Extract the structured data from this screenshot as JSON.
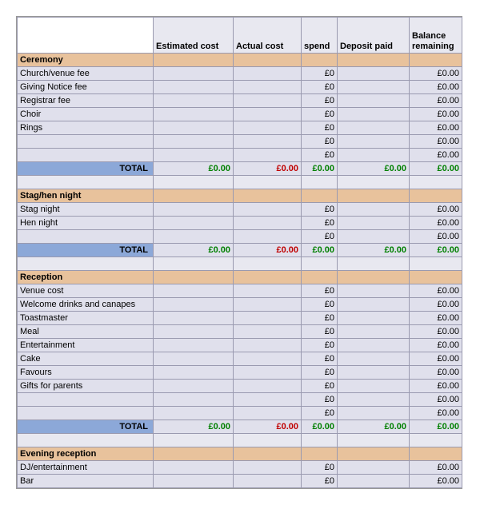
{
  "headers": {
    "col1": "",
    "col2": "Estimated cost",
    "col3": "Actual cost",
    "col4": "spend",
    "col5": "Deposit paid",
    "col6": "Balance remaining"
  },
  "colors": {
    "section_bg": "#e8c29c",
    "item_bg": "#e0e0ec",
    "total_label_bg": "#8ca8d8",
    "green": "#008000",
    "red": "#c00000",
    "grid": "#9a9ab0"
  },
  "sections": [
    {
      "title": "Ceremony",
      "items": [
        {
          "name": "Church/venue fee",
          "spend": "£0",
          "balance": "£0.00"
        },
        {
          "name": "Giving Notice fee",
          "spend": "£0",
          "balance": "£0.00"
        },
        {
          "name": "Registrar fee",
          "spend": "£0",
          "balance": "£0.00"
        },
        {
          "name": "Choir",
          "spend": "£0",
          "balance": "£0.00"
        },
        {
          "name": "Rings",
          "spend": "£0",
          "balance": "£0.00"
        },
        {
          "name": "",
          "spend": "£0",
          "balance": "£0.00"
        },
        {
          "name": "",
          "spend": "£0",
          "balance": "£0.00"
        }
      ],
      "total": {
        "label": "TOTAL",
        "est": "£0.00",
        "act": "£0.00",
        "spend": "£0.00",
        "dep": "£0.00",
        "bal": "£0.00"
      }
    },
    {
      "title": "Stag/hen night",
      "items": [
        {
          "name": "Stag night",
          "spend": "£0",
          "balance": "£0.00"
        },
        {
          "name": "Hen night",
          "spend": "£0",
          "balance": "£0.00"
        },
        {
          "name": "",
          "spend": "£0",
          "balance": "£0.00"
        }
      ],
      "total": {
        "label": "TOTAL",
        "est": "£0.00",
        "act": "£0.00",
        "spend": "£0.00",
        "dep": "£0.00",
        "bal": "£0.00"
      }
    },
    {
      "title": "Reception",
      "items": [
        {
          "name": "Venue cost",
          "spend": "£0",
          "balance": "£0.00"
        },
        {
          "name": "Welcome drinks and canapes",
          "spend": "£0",
          "balance": "£0.00"
        },
        {
          "name": "Toastmaster",
          "spend": "£0",
          "balance": "£0.00"
        },
        {
          "name": "Meal",
          "spend": "£0",
          "balance": "£0.00"
        },
        {
          "name": "Entertainment",
          "spend": "£0",
          "balance": "£0.00"
        },
        {
          "name": "Cake",
          "spend": "£0",
          "balance": "£0.00"
        },
        {
          "name": "Favours",
          "spend": "£0",
          "balance": "£0.00"
        },
        {
          "name": "Gifts for parents",
          "spend": "£0",
          "balance": "£0.00"
        },
        {
          "name": "",
          "spend": "£0",
          "balance": "£0.00"
        },
        {
          "name": "",
          "spend": "£0",
          "balance": "£0.00"
        }
      ],
      "total": {
        "label": "TOTAL",
        "est": "£0.00",
        "act": "£0.00",
        "spend": "£0.00",
        "dep": "£0.00",
        "bal": "£0.00"
      }
    },
    {
      "title": "Evening reception",
      "items": [
        {
          "name": "DJ/entertainment",
          "spend": "£0",
          "balance": "£0.00"
        },
        {
          "name": "Bar",
          "spend": "£0",
          "balance": "£0.00"
        }
      ],
      "total": null
    }
  ]
}
